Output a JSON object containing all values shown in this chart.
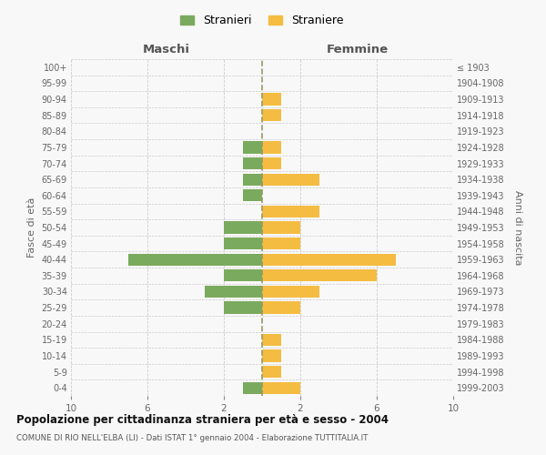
{
  "age_groups": [
    "0-4",
    "5-9",
    "10-14",
    "15-19",
    "20-24",
    "25-29",
    "30-34",
    "35-39",
    "40-44",
    "45-49",
    "50-54",
    "55-59",
    "60-64",
    "65-69",
    "70-74",
    "75-79",
    "80-84",
    "85-89",
    "90-94",
    "95-99",
    "100+"
  ],
  "birth_years": [
    "1999-2003",
    "1994-1998",
    "1989-1993",
    "1984-1988",
    "1979-1983",
    "1974-1978",
    "1969-1973",
    "1964-1968",
    "1959-1963",
    "1954-1958",
    "1949-1953",
    "1944-1948",
    "1939-1943",
    "1934-1938",
    "1929-1933",
    "1924-1928",
    "1919-1923",
    "1914-1918",
    "1909-1913",
    "1904-1908",
    "≤ 1903"
  ],
  "maschi": [
    1,
    0,
    0,
    0,
    0,
    2,
    3,
    2,
    7,
    2,
    2,
    0,
    1,
    1,
    1,
    1,
    0,
    0,
    0,
    0,
    0
  ],
  "femmine": [
    2,
    1,
    1,
    1,
    0,
    2,
    3,
    6,
    7,
    2,
    2,
    3,
    0,
    3,
    1,
    1,
    0,
    1,
    1,
    0,
    0
  ],
  "color_maschi": "#7aaa5e",
  "color_femmine": "#f5bc42",
  "title": "Popolazione per cittadinanza straniera per età e sesso - 2004",
  "subtitle": "COMUNE DI RIO NELL'ELBA (LI) - Dati ISTAT 1° gennaio 2004 - Elaborazione TUTTITALIA.IT",
  "xlabel_left": "Maschi",
  "xlabel_right": "Femmine",
  "ylabel_left": "Fasce di età",
  "ylabel_right": "Anni di nascita",
  "legend_maschi": "Stranieri",
  "legend_femmine": "Straniere",
  "xlim": 10,
  "xtick_positions": [
    -10,
    -6,
    -2,
    2,
    6,
    10
  ],
  "xtick_labels": [
    "10",
    "6",
    "2",
    "2",
    "6",
    "10"
  ],
  "background_color": "#f8f8f8",
  "grid_color": "#cccccc",
  "bar_height": 0.75
}
